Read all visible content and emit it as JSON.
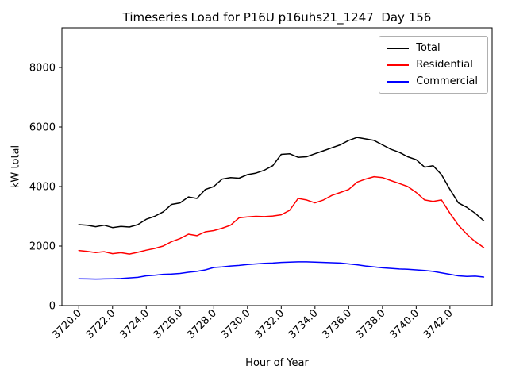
{
  "chart_data": {
    "type": "line",
    "title": "Timeseries Load for P16U p16uhs21_1247  Day 156",
    "xlabel": "Hour of Year",
    "ylabel": "kW total",
    "xlim": [
      3719,
      3744.5
    ],
    "ylim": [
      0,
      9333
    ],
    "grid": false,
    "legend_position": "upper right",
    "x_ticks": {
      "values": [
        3720,
        3722,
        3724,
        3726,
        3728,
        3730,
        3732,
        3734,
        3736,
        3738,
        3740,
        3742
      ],
      "labels": [
        "3720.0",
        "3722.0",
        "3724.0",
        "3726.0",
        "3728.0",
        "3730.0",
        "3732.0",
        "3734.0",
        "3736.0",
        "3738.0",
        "3740.0",
        "3742.0"
      ]
    },
    "y_ticks": {
      "values": [
        0,
        2000,
        4000,
        6000,
        8000
      ],
      "labels": [
        "0",
        "2000",
        "4000",
        "6000",
        "8000"
      ]
    },
    "x": [
      3720.0,
      3720.5,
      3721.0,
      3721.5,
      3722.0,
      3722.5,
      3723.0,
      3723.5,
      3724.0,
      3724.5,
      3725.0,
      3725.5,
      3726.0,
      3726.5,
      3727.0,
      3727.5,
      3728.0,
      3728.5,
      3729.0,
      3729.5,
      3730.0,
      3730.5,
      3731.0,
      3731.5,
      3732.0,
      3732.5,
      3733.0,
      3733.5,
      3734.0,
      3734.5,
      3735.0,
      3735.5,
      3736.0,
      3736.5,
      3737.0,
      3737.5,
      3738.0,
      3738.5,
      3739.0,
      3739.5,
      3740.0,
      3740.5,
      3741.0,
      3741.5,
      3742.0,
      3742.5,
      3743.0,
      3743.5,
      3744.0
    ],
    "series": [
      {
        "name": "Total",
        "color": "#000000",
        "values": [
          2720,
          2700,
          2650,
          2700,
          2620,
          2660,
          2640,
          2720,
          2900,
          3000,
          3150,
          3400,
          3450,
          3650,
          3600,
          3900,
          4000,
          4250,
          4300,
          4280,
          4400,
          4450,
          4550,
          4700,
          5080,
          5100,
          4980,
          5000,
          5100,
          5200,
          5300,
          5400,
          5550,
          5650,
          5600,
          5550,
          5400,
          5250,
          5150,
          5000,
          4900,
          4650,
          4700,
          4400,
          3900,
          3450,
          3300,
          3100,
          2850
        ]
      },
      {
        "name": "Residential",
        "color": "#ff0000",
        "values": [
          1850,
          1820,
          1780,
          1810,
          1745,
          1775,
          1730,
          1790,
          1860,
          1920,
          2000,
          2150,
          2250,
          2400,
          2350,
          2480,
          2520,
          2600,
          2700,
          2950,
          2980,
          3000,
          2990,
          3010,
          3050,
          3200,
          3600,
          3550,
          3450,
          3550,
          3700,
          3800,
          3900,
          4150,
          4250,
          4330,
          4300,
          4200,
          4100,
          4000,
          3800,
          3550,
          3500,
          3550,
          3100,
          2700,
          2400,
          2150,
          1950
        ]
      },
      {
        "name": "Commercial",
        "color": "#0000ff",
        "values": [
          900,
          895,
          890,
          895,
          900,
          910,
          930,
          950,
          1000,
          1020,
          1050,
          1060,
          1080,
          1120,
          1150,
          1200,
          1280,
          1300,
          1330,
          1350,
          1380,
          1400,
          1420,
          1430,
          1450,
          1460,
          1470,
          1470,
          1460,
          1450,
          1440,
          1430,
          1400,
          1370,
          1330,
          1300,
          1270,
          1250,
          1230,
          1220,
          1200,
          1180,
          1150,
          1100,
          1050,
          1000,
          980,
          990,
          960
        ]
      }
    ]
  }
}
